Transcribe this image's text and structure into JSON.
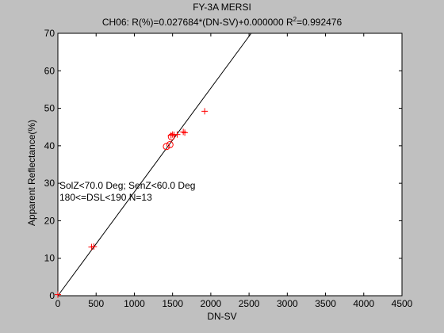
{
  "chart_data": {
    "type": "scatter",
    "title": "FY-3A MERSI",
    "subtitle": {
      "prefix": "CH06: R(%)=0.027684*(DN-SV)+0.000000 R",
      "sup": "2",
      "suffix": "=0.992476"
    },
    "xlabel": "DN-SV",
    "ylabel": "Apparent Reflectance(%)",
    "xlim": [
      0,
      4500
    ],
    "ylim": [
      0,
      70
    ],
    "xticks": [
      0,
      500,
      1000,
      1500,
      2000,
      2500,
      3000,
      3500,
      4000,
      4500
    ],
    "yticks": [
      0,
      10,
      20,
      30,
      40,
      50,
      60,
      70
    ],
    "grid": false,
    "annotations": [
      "SolZ<70.0 Deg; SenZ<60.0 Deg",
      "180<=DSL<190 N=13"
    ],
    "fit_line": {
      "slope": 0.027684,
      "intercept": 0.0
    },
    "series": [
      {
        "marker": "plus",
        "color": "#ff0000",
        "points": [
          [
            0,
            0.3
          ],
          [
            440,
            13.0
          ],
          [
            470,
            13.1
          ],
          [
            1480,
            42.8
          ],
          [
            1500,
            43.0
          ],
          [
            1520,
            42.9
          ],
          [
            1560,
            43.0
          ],
          [
            1640,
            43.7
          ],
          [
            1660,
            43.5
          ],
          [
            1920,
            49.2
          ]
        ]
      },
      {
        "marker": "circle",
        "color": "#ff0000",
        "points": [
          [
            1420,
            39.8
          ],
          [
            1465,
            40.3
          ],
          [
            1485,
            42.4
          ]
        ]
      }
    ]
  }
}
